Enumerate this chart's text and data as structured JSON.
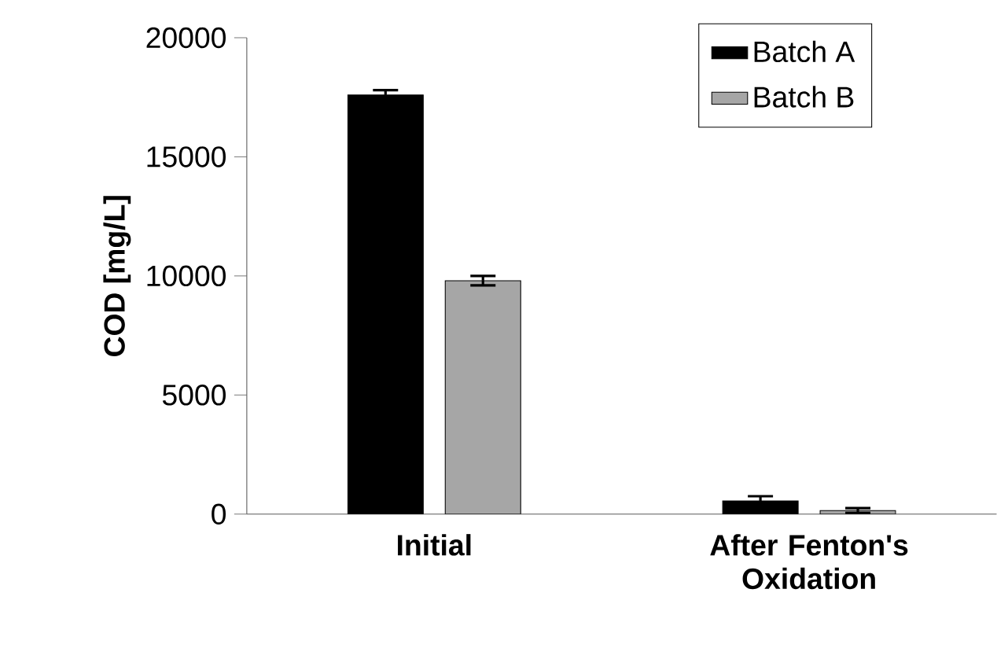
{
  "chart_data": {
    "type": "bar",
    "ylabel": "COD [mg/L]",
    "categories": [
      "Initial",
      "After Fenton's Oxidation"
    ],
    "series": [
      {
        "name": "Batch A",
        "color": "#000000",
        "values": [
          17600,
          550
        ],
        "errors": [
          200,
          200
        ]
      },
      {
        "name": "Batch B",
        "color": "#a6a6a6",
        "values": [
          9800,
          150
        ],
        "errors": [
          200,
          100
        ]
      }
    ],
    "ylim": [
      0,
      20000
    ],
    "yticks": [
      0,
      5000,
      10000,
      15000,
      20000
    ],
    "grid": false,
    "legend": "top right"
  }
}
